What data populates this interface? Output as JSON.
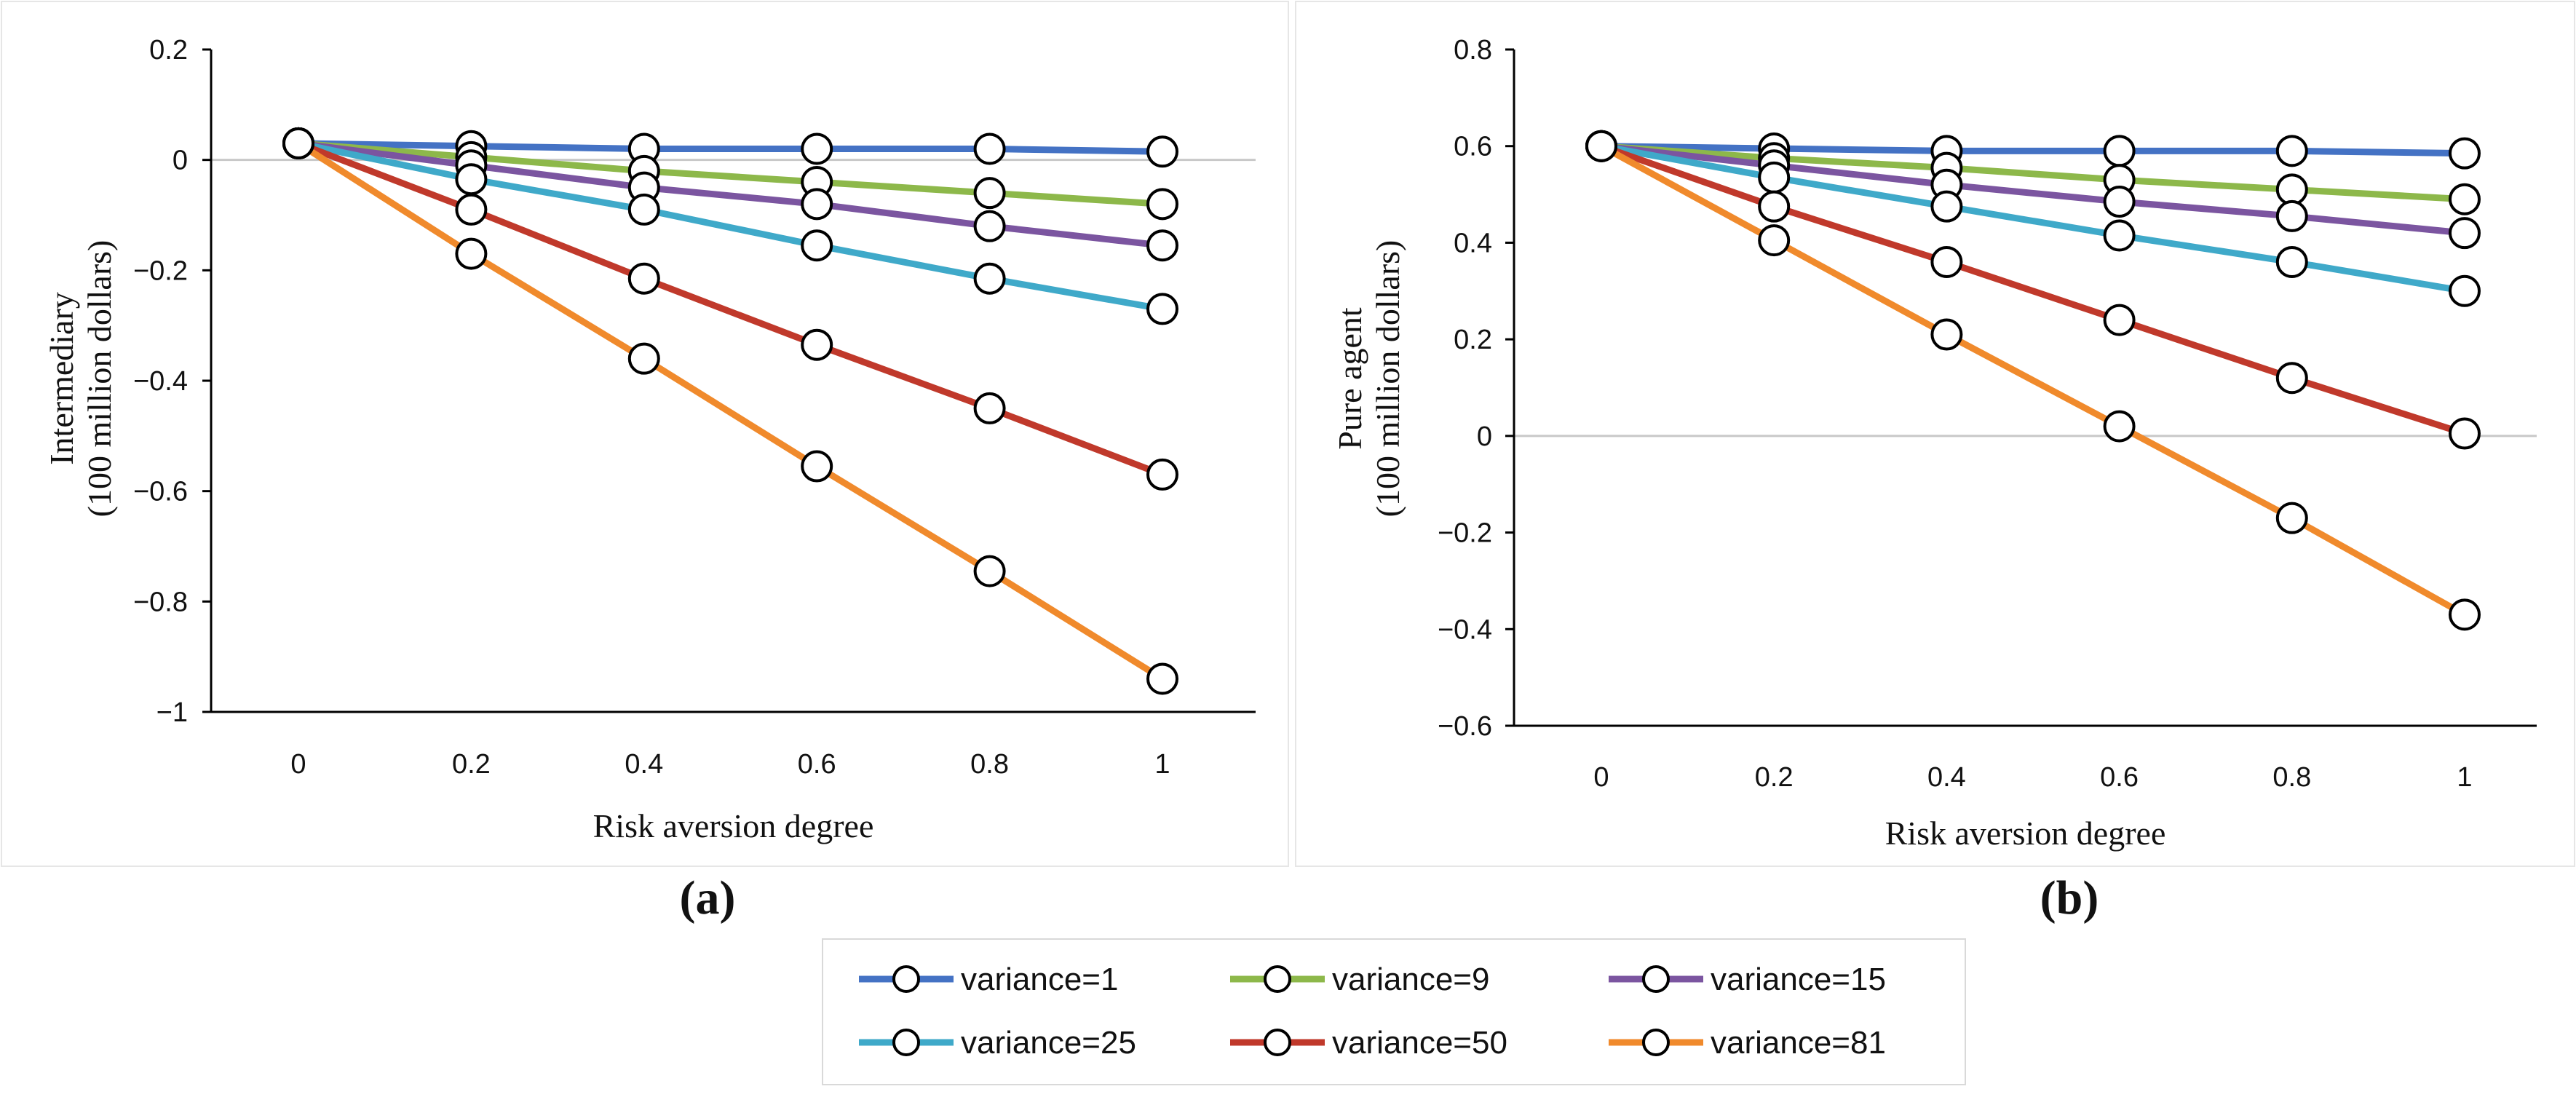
{
  "chart_data": [
    {
      "type": "line",
      "panel_label": "(a)",
      "xlabel": "Risk aversion degree",
      "ylabel": [
        "Intermediary",
        "(100 million dollars)"
      ],
      "x": [
        0,
        0.2,
        0.4,
        0.6,
        0.8,
        1
      ],
      "x_tick_labels": [
        "0",
        "0.2",
        "0.4",
        "0.6",
        "0.8",
        "1"
      ],
      "ylim": [
        -1,
        0.2
      ],
      "y_ticks": [
        0.2,
        0,
        -0.2,
        -0.4,
        -0.6,
        -0.8,
        -1
      ],
      "y_tick_labels": [
        "0.2",
        "0",
        "−0.2",
        "−0.4",
        "−0.6",
        "−0.8",
        "−1"
      ],
      "series": [
        {
          "name": "variance=1",
          "values": [
            0.03,
            0.025,
            0.02,
            0.02,
            0.02,
            0.015
          ]
        },
        {
          "name": "variance=9",
          "values": [
            0.03,
            0.005,
            -0.02,
            -0.04,
            -0.06,
            -0.08
          ]
        },
        {
          "name": "variance=15",
          "values": [
            0.03,
            -0.01,
            -0.05,
            -0.08,
            -0.12,
            -0.155
          ]
        },
        {
          "name": "variance=25",
          "values": [
            0.03,
            -0.035,
            -0.09,
            -0.155,
            -0.215,
            -0.27
          ]
        },
        {
          "name": "variance=50",
          "values": [
            0.03,
            -0.09,
            -0.215,
            -0.335,
            -0.45,
            -0.57
          ]
        },
        {
          "name": "variance=81",
          "values": [
            0.03,
            -0.17,
            -0.36,
            -0.555,
            -0.745,
            -0.94
          ]
        }
      ]
    },
    {
      "type": "line",
      "panel_label": "(b)",
      "xlabel": "Risk aversion degree",
      "ylabel": [
        "Pure agent",
        "(100 million dollars)"
      ],
      "x": [
        0,
        0.2,
        0.4,
        0.6,
        0.8,
        1
      ],
      "x_tick_labels": [
        "0",
        "0.2",
        "0.4",
        "0.6",
        "0.8",
        "1"
      ],
      "ylim": [
        -0.6,
        0.8
      ],
      "y_ticks": [
        0.8,
        0.6,
        0.4,
        0.2,
        0,
        -0.2,
        -0.4,
        -0.6
      ],
      "y_tick_labels": [
        "0.8",
        "0.6",
        "0.4",
        "0.2",
        "0",
        "−0.2",
        "−0.4",
        "−0.6"
      ],
      "series": [
        {
          "name": "variance=1",
          "values": [
            0.6,
            0.595,
            0.59,
            0.59,
            0.59,
            0.585
          ]
        },
        {
          "name": "variance=9",
          "values": [
            0.6,
            0.575,
            0.555,
            0.53,
            0.51,
            0.49
          ]
        },
        {
          "name": "variance=15",
          "values": [
            0.6,
            0.56,
            0.52,
            0.485,
            0.455,
            0.42
          ]
        },
        {
          "name": "variance=25",
          "values": [
            0.6,
            0.535,
            0.475,
            0.415,
            0.36,
            0.3
          ]
        },
        {
          "name": "variance=50",
          "values": [
            0.6,
            0.475,
            0.36,
            0.24,
            0.12,
            0.005
          ]
        },
        {
          "name": "variance=81",
          "values": [
            0.6,
            0.405,
            0.21,
            0.02,
            -0.17,
            -0.37
          ]
        }
      ]
    }
  ],
  "colors": {
    "variance=1": "#4472c4",
    "variance=9": "#8db84a",
    "variance=15": "#7b55a0",
    "variance=25": "#3fa9c9",
    "variance=50": "#c0392b",
    "variance=81": "#f08a2c"
  },
  "legend": {
    "items": [
      "variance=1",
      "variance=9",
      "variance=15",
      "variance=25",
      "variance=50",
      "variance=81"
    ]
  }
}
